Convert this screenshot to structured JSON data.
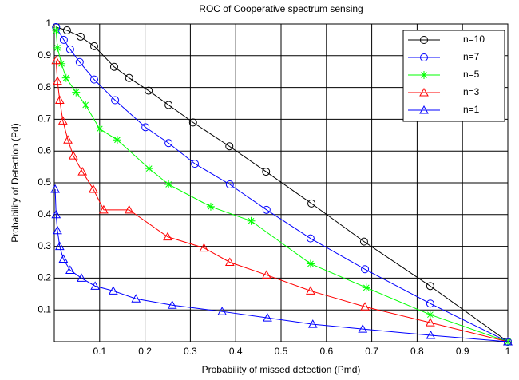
{
  "chart_data": {
    "type": "line",
    "title": "ROC of Cooperative  spectrum sensing",
    "x_label": "Probability of missed detection (Pmd)",
    "y_label": "Probability of Detection (Pd)",
    "xlim": [
      0,
      1
    ],
    "ylim": [
      0,
      1
    ],
    "xticks": [
      0.1,
      0.2,
      0.3,
      0.4,
      0.5,
      0.6,
      0.7,
      0.8,
      0.9,
      1
    ],
    "yticks": [
      0.1,
      0.2,
      0.3,
      0.4,
      0.5,
      0.6,
      0.7,
      0.8,
      0.9,
      1
    ],
    "grid": true,
    "legend": "upper right",
    "series": [
      {
        "name": "n=10",
        "color": "#000000",
        "marker": "circle",
        "x": [
          0.004,
          0.028,
          0.058,
          0.088,
          0.132,
          0.165,
          0.208,
          0.252,
          0.306,
          0.386,
          0.467,
          0.567,
          0.683,
          0.829,
          1
        ],
        "values": [
          0.99,
          0.98,
          0.96,
          0.93,
          0.865,
          0.83,
          0.79,
          0.745,
          0.69,
          0.615,
          0.535,
          0.435,
          0.315,
          0.175,
          0
        ]
      },
      {
        "name": "n=7",
        "color": "#0000ff",
        "marker": "circle",
        "x": [
          0.004,
          0.021,
          0.035,
          0.056,
          0.088,
          0.134,
          0.201,
          0.252,
          0.31,
          0.387,
          0.468,
          0.565,
          0.685,
          0.829,
          1
        ],
        "values": [
          0.99,
          0.95,
          0.92,
          0.88,
          0.825,
          0.76,
          0.675,
          0.625,
          0.56,
          0.495,
          0.415,
          0.325,
          0.228,
          0.12,
          0
        ]
      },
      {
        "name": "n=5",
        "color": "#00ff00",
        "marker": "star",
        "x": [
          0.004,
          0.007,
          0.016,
          0.026,
          0.048,
          0.069,
          0.1,
          0.139,
          0.209,
          0.252,
          0.345,
          0.434,
          0.565,
          0.688,
          0.829,
          1
        ],
        "values": [
          0.98,
          0.925,
          0.875,
          0.83,
          0.785,
          0.745,
          0.67,
          0.635,
          0.545,
          0.495,
          0.425,
          0.38,
          0.245,
          0.17,
          0.085,
          0
        ]
      },
      {
        "name": "n=3",
        "color": "#ff0000",
        "marker": "triangle",
        "x": [
          0.004,
          0.007,
          0.012,
          0.019,
          0.03,
          0.042,
          0.062,
          0.086,
          0.109,
          0.165,
          0.25,
          0.33,
          0.387,
          0.468,
          0.565,
          0.685,
          0.829,
          1
        ],
        "values": [
          0.885,
          0.82,
          0.76,
          0.695,
          0.635,
          0.585,
          0.535,
          0.48,
          0.415,
          0.415,
          0.33,
          0.295,
          0.25,
          0.21,
          0.16,
          0.11,
          0.06,
          0
        ]
      },
      {
        "name": "n=1",
        "color": "#0000ff",
        "marker": "triangle",
        "x": [
          0.002,
          0.004,
          0.007,
          0.012,
          0.02,
          0.035,
          0.06,
          0.09,
          0.13,
          0.18,
          0.26,
          0.37,
          0.47,
          0.57,
          0.68,
          0.83,
          1
        ],
        "values": [
          0.48,
          0.4,
          0.35,
          0.3,
          0.26,
          0.225,
          0.2,
          0.175,
          0.16,
          0.135,
          0.115,
          0.095,
          0.075,
          0.055,
          0.04,
          0.02,
          0
        ]
      }
    ]
  }
}
